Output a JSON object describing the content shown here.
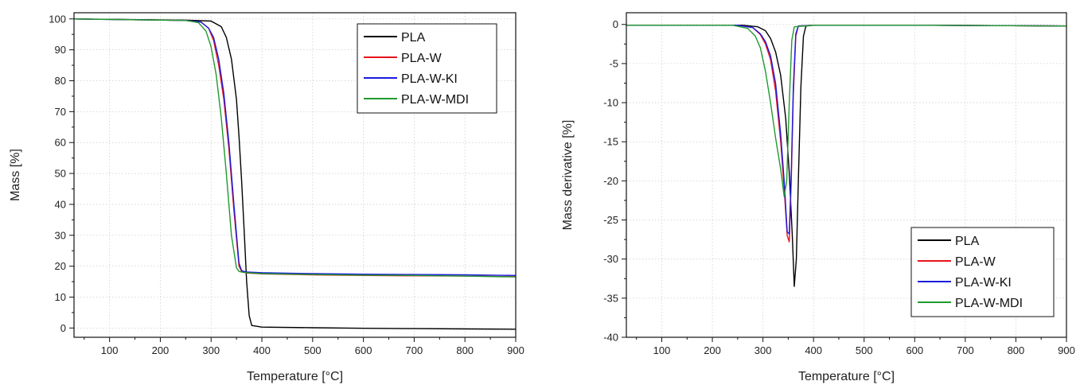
{
  "chart_data": [
    {
      "type": "line",
      "xlabel": "Temperature [°C]",
      "ylabel": "Mass [%]",
      "xlim": [
        30,
        900
      ],
      "ylim": [
        -3,
        102
      ],
      "xticks": [
        100,
        200,
        300,
        400,
        500,
        600,
        700,
        800,
        900
      ],
      "yticks": [
        0,
        10,
        20,
        30,
        40,
        50,
        60,
        70,
        80,
        90,
        100
      ],
      "grid": true,
      "legend_position": "top-right",
      "series": [
        {
          "name": "PLA",
          "color": "#000000",
          "x": [
            30,
            250,
            300,
            320,
            330,
            340,
            350,
            355,
            360,
            365,
            370,
            375,
            380,
            400,
            500,
            600,
            700,
            800,
            900
          ],
          "y": [
            100,
            99.6,
            99.3,
            97.5,
            94,
            87,
            74,
            62,
            48,
            32,
            15,
            4,
            0.8,
            0.3,
            0.1,
            -0.1,
            -0.2,
            -0.3,
            -0.4
          ]
        },
        {
          "name": "PLA-W",
          "color": "#e8141b",
          "x": [
            30,
            250,
            280,
            295,
            305,
            315,
            325,
            335,
            345,
            355,
            360,
            365,
            370,
            400,
            500,
            600,
            700,
            800,
            900
          ],
          "y": [
            100,
            99.5,
            99,
            97,
            93,
            85,
            74,
            58,
            38,
            20,
            18.3,
            18,
            17.8,
            17.5,
            17.2,
            17,
            16.9,
            16.8,
            16.6
          ]
        },
        {
          "name": "PLA-W-KI",
          "color": "#1b1bde",
          "x": [
            30,
            250,
            280,
            295,
            305,
            315,
            325,
            335,
            345,
            355,
            360,
            365,
            370,
            400,
            500,
            600,
            700,
            800,
            900
          ],
          "y": [
            100,
            99.5,
            99,
            97,
            94,
            87,
            76,
            60,
            40,
            21,
            18.6,
            18.3,
            18.1,
            17.9,
            17.6,
            17.4,
            17.3,
            17.2,
            17.0
          ]
        },
        {
          "name": "PLA-W-MDI",
          "color": "#1f9a2e",
          "x": [
            30,
            250,
            275,
            290,
            300,
            310,
            320,
            330,
            340,
            350,
            355,
            360,
            370,
            400,
            500,
            600,
            700,
            800,
            900
          ],
          "y": [
            100,
            99.5,
            98.8,
            96,
            91,
            82,
            68,
            50,
            30,
            19.5,
            18.3,
            18.1,
            17.9,
            17.6,
            17.3,
            17.1,
            17.0,
            16.8,
            16.5
          ]
        }
      ]
    },
    {
      "type": "line",
      "xlabel": "Temperature [°C]",
      "ylabel": "Mass derivative [%]",
      "xlim": [
        30,
        900
      ],
      "ylim": [
        -40,
        1.5
      ],
      "xticks": [
        100,
        200,
        300,
        400,
        500,
        600,
        700,
        800,
        900
      ],
      "yticks": [
        0,
        -5,
        -10,
        -15,
        -20,
        -25,
        -30,
        -35,
        -40
      ],
      "grid": true,
      "legend_position": "bottom-right",
      "series": [
        {
          "name": "PLA",
          "color": "#000000",
          "x": [
            30,
            260,
            290,
            305,
            315,
            325,
            335,
            345,
            352,
            358,
            362,
            366,
            370,
            375,
            380,
            385,
            400,
            600,
            900
          ],
          "y": [
            -0.1,
            -0.1,
            -0.3,
            -0.8,
            -1.8,
            -3.5,
            -6.5,
            -12,
            -19,
            -27,
            -33.5,
            -30,
            -20,
            -8,
            -1.5,
            -0.2,
            -0.1,
            -0.1,
            -0.2
          ]
        },
        {
          "name": "PLA-W",
          "color": "#e8141b",
          "x": [
            30,
            250,
            280,
            295,
            305,
            315,
            325,
            335,
            342,
            348,
            352,
            356,
            360,
            365,
            370,
            400,
            600,
            900
          ],
          "y": [
            -0.1,
            -0.1,
            -0.4,
            -1.3,
            -2.5,
            -4.5,
            -8.5,
            -15,
            -21,
            -27,
            -27.8,
            -20,
            -9,
            -1.5,
            -0.2,
            -0.1,
            -0.1,
            -0.2
          ]
        },
        {
          "name": "PLA-W-KI",
          "color": "#1b1bde",
          "x": [
            30,
            250,
            280,
            295,
            305,
            315,
            325,
            335,
            342,
            348,
            352,
            356,
            360,
            365,
            370,
            400,
            600,
            900
          ],
          "y": [
            -0.1,
            -0.1,
            -0.4,
            -1.2,
            -2.2,
            -4,
            -7.5,
            -14,
            -20,
            -26.5,
            -26.8,
            -19,
            -8,
            -1.2,
            -0.2,
            -0.1,
            -0.1,
            -0.2
          ]
        },
        {
          "name": "PLA-W-MDI",
          "color": "#1f9a2e",
          "x": [
            30,
            240,
            270,
            285,
            295,
            305,
            315,
            325,
            335,
            342,
            347,
            352,
            357,
            362,
            400,
            600,
            900
          ],
          "y": [
            -0.1,
            -0.1,
            -0.5,
            -1.5,
            -3,
            -6,
            -10,
            -14.5,
            -18.5,
            -22,
            -20,
            -10,
            -2,
            -0.3,
            -0.1,
            -0.1,
            -0.2
          ]
        }
      ]
    }
  ]
}
